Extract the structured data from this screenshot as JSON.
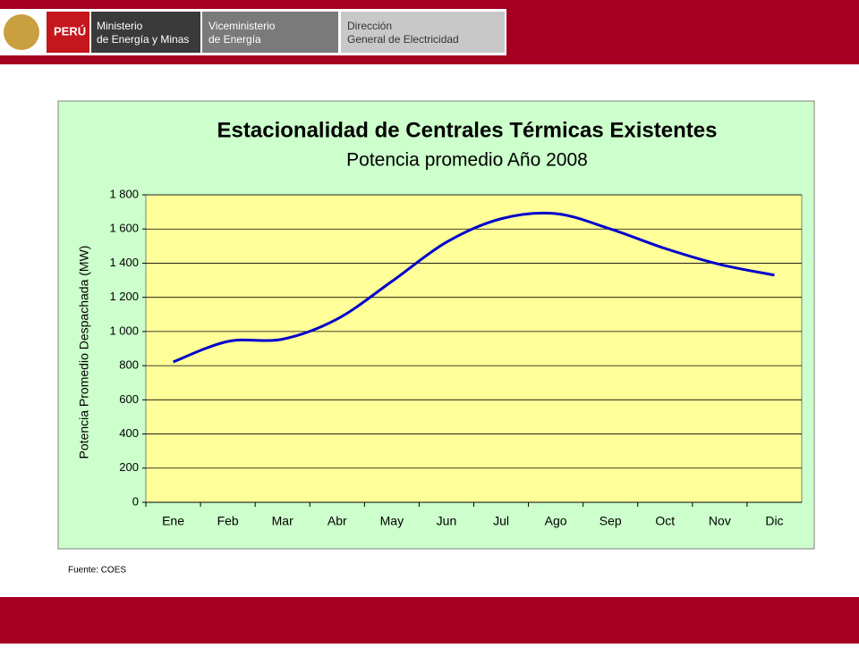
{
  "header": {
    "country": "PERÚ",
    "ministry": [
      "Ministerio",
      "de Energía y Minas"
    ],
    "vice": [
      "Viceministerio",
      "de Energía"
    ],
    "direction": [
      "Dirección",
      "General de Electricidad"
    ]
  },
  "chart_data": {
    "type": "line",
    "title": "Estacionalidad de Centrales Térmicas Existentes",
    "subtitle": "Potencia promedio Año 2008",
    "y_label": "Potencia Promedio Despachada (MW)",
    "categories": [
      "Ene",
      "Feb",
      "Mar",
      "Abr",
      "May",
      "Jun",
      "Jul",
      "Ago",
      "Sep",
      "Oct",
      "Nov",
      "Dic"
    ],
    "series": [
      {
        "name": "Potencia promedio",
        "color": "#0000cc",
        "values": [
          822,
          942,
          955,
          1073,
          1293,
          1523,
          1660,
          1690,
          1600,
          1486,
          1393,
          1330
        ]
      }
    ],
    "ylim": [
      0,
      1800
    ],
    "yticks": [
      0,
      200,
      400,
      600,
      800,
      {
        "value": 1000,
        "label": "1 000"
      },
      {
        "value": 1200,
        "label": "1 200"
      },
      {
        "value": 1400,
        "label": "1 400"
      },
      {
        "value": 1600,
        "label": "1 600"
      },
      {
        "value": 1800,
        "label": "1 800"
      }
    ],
    "grid": true
  },
  "source": "Fuente: COES"
}
